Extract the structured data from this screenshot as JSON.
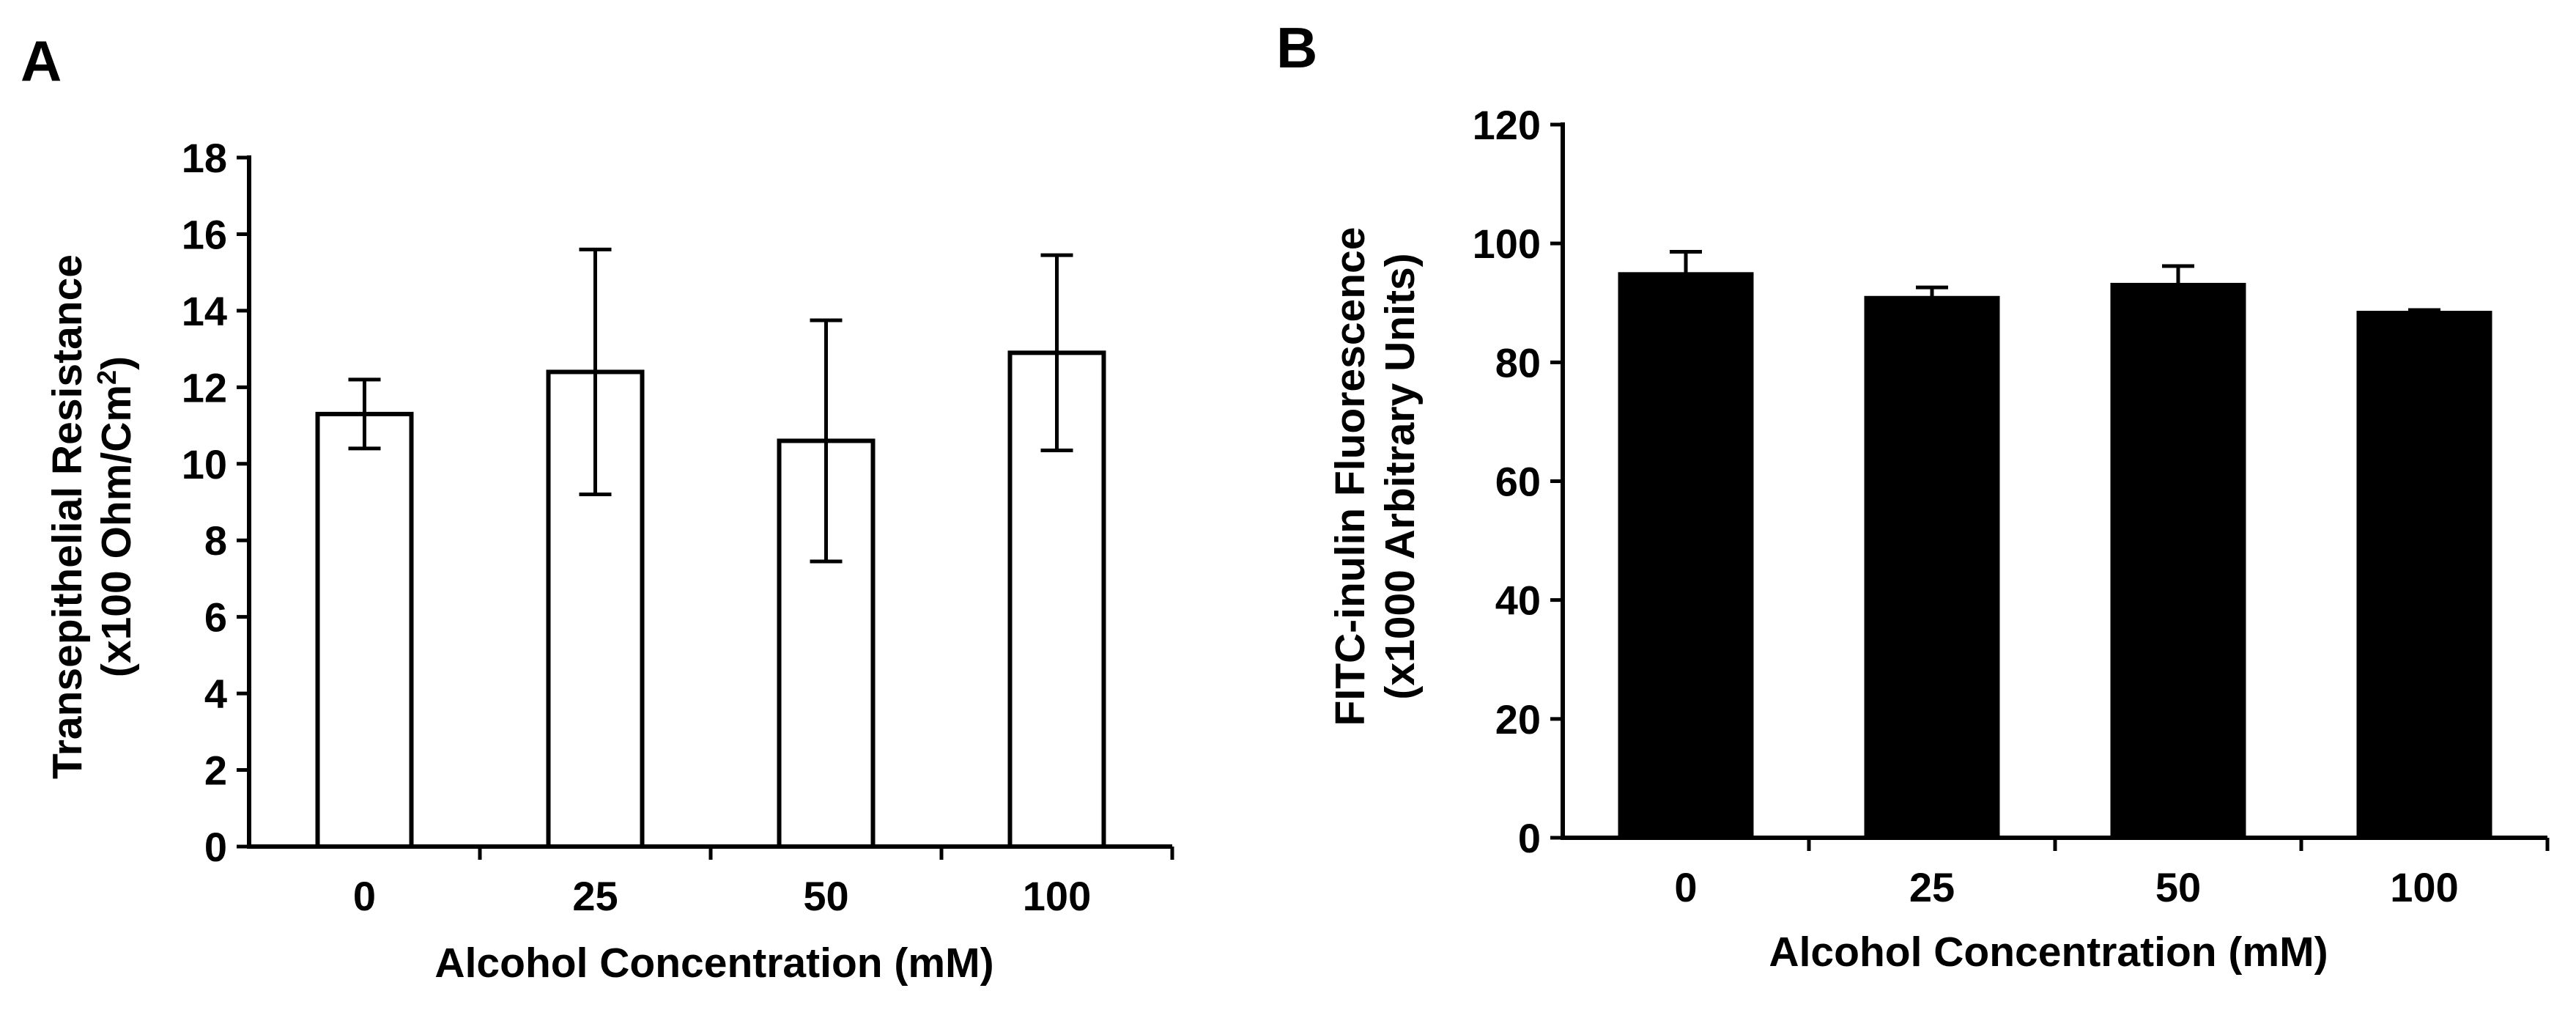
{
  "figure": {
    "colors": {
      "axis": "#000000",
      "panel_a_bar_fill": "#ffffff",
      "panel_b_bar_fill": "#000000"
    }
  },
  "chart_data": [
    {
      "panel_label": "A",
      "type": "bar",
      "categories": [
        "0",
        "25",
        "50",
        "100"
      ],
      "values": [
        11.3,
        12.4,
        10.6,
        12.9
      ],
      "errors": [
        0.9,
        3.2,
        3.15,
        2.55
      ],
      "xlabel": "Alcohol Concentration (mM)",
      "ylabel_line1": "Transepithelial Resistance",
      "ylabel_line2_prefix": "(x100 Ohm/Cm",
      "ylabel_line2_sup": "2",
      "ylabel_line2_suffix": ")",
      "ylim": [
        0,
        18
      ],
      "yticks": [
        0,
        2,
        4,
        6,
        8,
        10,
        12,
        14,
        16,
        18
      ],
      "bar_style": "hollow",
      "grid": false
    },
    {
      "panel_label": "B",
      "type": "bar",
      "categories": [
        "0",
        "25",
        "50",
        "100"
      ],
      "values": [
        94.8,
        90.8,
        93.0,
        88.3
      ],
      "errors": [
        3.8,
        1.8,
        3.2,
        0.5
      ],
      "xlabel": "Alcohol Concentration (mM)",
      "ylabel_line1": "FITC-inulin Fluorescence",
      "ylabel_line2": "(x1000 Arbitrary Units)",
      "ylim": [
        0,
        120
      ],
      "yticks": [
        0,
        20,
        40,
        60,
        80,
        100,
        120
      ],
      "bar_style": "filled",
      "grid": false
    }
  ]
}
